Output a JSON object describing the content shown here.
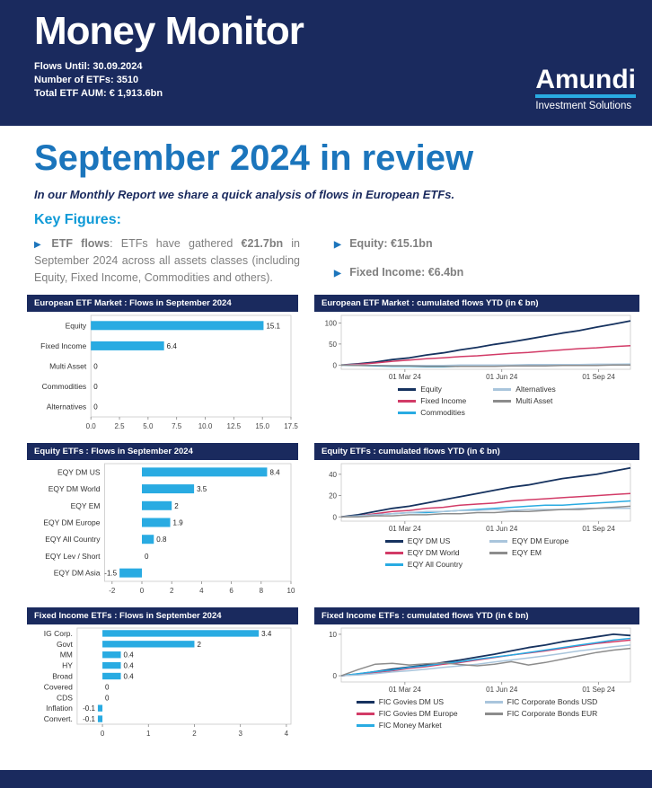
{
  "header": {
    "title": "Money Monitor",
    "meta": [
      {
        "label": "Flows Until:",
        "value": "30.09.2024"
      },
      {
        "label": "Number of ETFs:",
        "value": "3510"
      },
      {
        "label": "Total ETF AUM:",
        "value": "€ 1,913.6bn"
      }
    ],
    "logo": {
      "name": "Amundi",
      "subtitle": "Investment Solutions"
    }
  },
  "main": {
    "title": "September 2024 in review",
    "intro": "In our Monthly Report we share a quick analysis of flows in European ETFs.",
    "key_figures_heading": "Key Figures:",
    "bullet": "▶",
    "etf_flows_paragraph": [
      {
        "text": "ETF flows",
        "bold": true
      },
      {
        "text": ": ETFs have gathered ",
        "bold": false
      },
      {
        "text": "€21.7bn",
        "bold": true
      },
      {
        "text": " in September 2024 across all assets classes (including Equity, Fixed Income, Commodities and others).",
        "bold": false
      }
    ],
    "key_figures": [
      {
        "label": "Equity:",
        "value": "€15.1bn"
      },
      {
        "label": "Fixed Income:",
        "value": "€6.4bn"
      }
    ]
  },
  "colors": {
    "navy": "#1a2a5e",
    "title_blue": "#1b75bc",
    "cyan_accent": "#29abe2",
    "key_heading_blue": "#0f9ad7",
    "body_gray": "#7f7f7f",
    "line_navy": "#16325f",
    "line_crimson": "#d23b67",
    "line_cyan": "#29abe2",
    "line_lightblue": "#a9c5dc",
    "line_gray": "#8c8c8c"
  },
  "chart_data": [
    {
      "type": "bar",
      "title": "European ETF Market : Flows in September 2024",
      "orientation": "horizontal",
      "categories": [
        "Equity",
        "Fixed Income",
        "Multi Asset",
        "Commodities",
        "Alternatives"
      ],
      "values": [
        15.1,
        6.4,
        0,
        0,
        0
      ],
      "value_labels": [
        "15.1",
        "6.4",
        "0",
        "0",
        "0"
      ],
      "xlim": [
        0,
        17.5
      ],
      "xticks": [
        0,
        2.5,
        5,
        7.5,
        10,
        12.5,
        15,
        17.5
      ],
      "xtick_labels": [
        "0.0",
        "2.5",
        "5.0",
        "7.5",
        "10.0",
        "12.5",
        "15.0",
        "17.5"
      ],
      "bar_color": "#29abe2",
      "xlabel": "",
      "ylabel": ""
    },
    {
      "type": "line",
      "title": "European ETF Market : cumulated flows  YTD (in € bn)",
      "ylim": [
        -10,
        118
      ],
      "yticks": [
        0,
        50,
        100
      ],
      "ytick_labels": [
        "0",
        "50",
        "100"
      ],
      "xticks": [
        {
          "label": "01 Mar 24",
          "f": 0.22
        },
        {
          "label": "01 Jun 24",
          "f": 0.555
        },
        {
          "label": "01 Sep 24",
          "f": 0.89
        }
      ],
      "series": [
        {
          "name": "Equity",
          "color": "#16325f",
          "w": 1.8,
          "values": [
            0,
            3,
            7,
            13,
            17,
            24,
            29,
            36,
            42,
            49,
            55,
            62,
            69,
            76,
            82,
            90,
            97,
            105
          ]
        },
        {
          "name": "Fixed Income",
          "color": "#d23b67",
          "w": 1.5,
          "values": [
            0,
            2,
            5,
            9,
            12,
            15,
            17,
            20,
            22,
            25,
            28,
            30,
            33,
            36,
            39,
            41,
            44,
            46
          ]
        },
        {
          "name": "Commodities",
          "color": "#29abe2",
          "w": 1.5,
          "values": [
            0,
            -1,
            -2,
            -3,
            -3,
            -4,
            -4,
            -3,
            -3,
            -2,
            -2,
            -1,
            -1,
            0,
            0,
            1,
            1,
            2
          ]
        },
        {
          "name": "Alternatives",
          "color": "#a9c5dc",
          "w": 1.5,
          "values": [
            0,
            0,
            -1,
            -1,
            -1,
            -1,
            -1,
            0,
            0,
            0,
            0,
            1,
            1,
            1,
            1,
            2,
            2,
            2
          ]
        },
        {
          "name": "Multi Asset",
          "color": "#8c8c8c",
          "w": 1.5,
          "values": [
            0,
            -1,
            -1,
            -2,
            -2,
            -3,
            -3,
            -3,
            -3,
            -3,
            -2,
            -2,
            -2,
            -1,
            -1,
            -1,
            0,
            0
          ]
        }
      ],
      "legend_order": [
        0,
        3,
        1,
        4,
        2
      ],
      "legend_position": "bottom",
      "grid": false
    },
    {
      "type": "bar",
      "title": "Equity ETFs : Flows in September 2024",
      "orientation": "horizontal",
      "categories": [
        "EQY DM US",
        "EQY DM World",
        "EQY EM",
        "EQY DM Europe",
        "EQY All Country",
        "EQY Lev / Short",
        "EQY DM Asia"
      ],
      "values": [
        8.4,
        3.5,
        2,
        1.9,
        0.8,
        0,
        -1.5
      ],
      "value_labels": [
        "8.4",
        "3.5",
        "2",
        "1.9",
        "0.8",
        "0",
        "-1.5"
      ],
      "xlim": [
        -2.5,
        10
      ],
      "xticks": [
        -2,
        0,
        2,
        4,
        6,
        8,
        10
      ],
      "xtick_labels": [
        "-2",
        "0",
        "2",
        "4",
        "6",
        "8",
        "10"
      ],
      "bar_color": "#29abe2",
      "xlabel": "",
      "ylabel": ""
    },
    {
      "type": "line",
      "title": "Equity ETFs : cumulated flows YTD (in € bn)",
      "ylim": [
        -4,
        50
      ],
      "yticks": [
        0,
        20,
        40
      ],
      "ytick_labels": [
        "0",
        "20",
        "40"
      ],
      "xticks": [
        {
          "label": "01 Mar 24",
          "f": 0.22
        },
        {
          "label": "01 Jun 24",
          "f": 0.555
        },
        {
          "label": "01 Sep 24",
          "f": 0.89
        }
      ],
      "series": [
        {
          "name": "EQY DM US",
          "color": "#16325f",
          "w": 1.8,
          "values": [
            0,
            2,
            5,
            8,
            10,
            13,
            16,
            19,
            22,
            25,
            28,
            30,
            33,
            36,
            38,
            40,
            43,
            46
          ]
        },
        {
          "name": "EQY DM World",
          "color": "#d23b67",
          "w": 1.5,
          "values": [
            0,
            1,
            3,
            5,
            6,
            8,
            9,
            11,
            12,
            13,
            15,
            16,
            17,
            18,
            19,
            20,
            21,
            22
          ]
        },
        {
          "name": "EQY All Country",
          "color": "#29abe2",
          "w": 1.5,
          "values": [
            0,
            1,
            2,
            3,
            4,
            4,
            5,
            6,
            7,
            8,
            9,
            10,
            11,
            11,
            12,
            13,
            14,
            15
          ]
        },
        {
          "name": "EQY DM Europe",
          "color": "#a9c5dc",
          "w": 1.5,
          "values": [
            0,
            1,
            2,
            3,
            4,
            5,
            5,
            6,
            6,
            7,
            6,
            7,
            7,
            7,
            8,
            8,
            8,
            8
          ]
        },
        {
          "name": "EQY EM",
          "color": "#8c8c8c",
          "w": 1.5,
          "values": [
            0,
            0,
            1,
            1,
            2,
            2,
            3,
            3,
            4,
            4,
            5,
            5,
            6,
            7,
            7,
            8,
            9,
            10
          ]
        }
      ],
      "legend_order": [
        0,
        3,
        1,
        4,
        2
      ],
      "legend_position": "bottom",
      "grid": false
    },
    {
      "type": "bar",
      "title": "Fixed Income ETFs : Flows in September 2024",
      "orientation": "horizontal",
      "categories": [
        "IG Corp.",
        "Govt",
        "MM",
        "HY",
        "Broad",
        "Covered",
        "CDS",
        "Inflation",
        "Convert."
      ],
      "values": [
        3.4,
        2,
        0.4,
        0.4,
        0.4,
        0,
        0,
        -0.1,
        -0.1
      ],
      "value_labels": [
        "3.4",
        "2",
        "0.4",
        "0.4",
        "0.4",
        "0",
        "0",
        "-0.1",
        "-0.1"
      ],
      "xlim": [
        -0.55,
        4.1
      ],
      "xticks": [
        0,
        1,
        2,
        3,
        4
      ],
      "xtick_labels": [
        "0",
        "1",
        "2",
        "3",
        "4"
      ],
      "bar_color": "#29abe2",
      "xlabel": "",
      "ylabel": ""
    },
    {
      "type": "line",
      "title": "Fixed Income ETFs : cumulated flows YTD (in € bn)",
      "ylim": [
        -1.5,
        11.5
      ],
      "yticks": [
        0,
        10
      ],
      "ytick_labels": [
        "0",
        "10"
      ],
      "xticks": [
        {
          "label": "01 Mar 24",
          "f": 0.22
        },
        {
          "label": "01 Jun 24",
          "f": 0.555
        },
        {
          "label": "01 Sep 24",
          "f": 0.89
        }
      ],
      "series": [
        {
          "name": "FIC Govies DM US",
          "color": "#16325f",
          "w": 1.8,
          "values": [
            0,
            0.4,
            1,
            1.6,
            2.1,
            2.6,
            3.2,
            3.8,
            4.5,
            5.2,
            6,
            6.8,
            7.4,
            8.2,
            8.8,
            9.4,
            10,
            9.7
          ]
        },
        {
          "name": "FIC Govies DM Europe",
          "color": "#d23b67",
          "w": 1.5,
          "values": [
            0,
            0.3,
            0.8,
            1.2,
            1.8,
            2.2,
            2.8,
            3.2,
            3.8,
            4.4,
            5,
            5.5,
            6,
            6.6,
            7.2,
            7.8,
            8.2,
            8.6
          ]
        },
        {
          "name": "FIC Money Market",
          "color": "#29abe2",
          "w": 1.5,
          "values": [
            0,
            0.5,
            1,
            1.4,
            2,
            2.4,
            3,
            3.4,
            4,
            4.5,
            5,
            5.6,
            6.2,
            6.8,
            7.4,
            8,
            8.6,
            9
          ]
        },
        {
          "name": "FIC Corporate Bonds USD",
          "color": "#a9c5dc",
          "w": 1.5,
          "values": [
            0,
            0.2,
            0.5,
            0.9,
            1.2,
            1.6,
            2,
            2.4,
            2.8,
            3.3,
            3.8,
            4.3,
            4.8,
            5.4,
            6,
            6.5,
            7,
            7.4
          ]
        },
        {
          "name": "FIC Corporate Bonds EUR",
          "color": "#8c8c8c",
          "w": 1.5,
          "values": [
            0,
            1.5,
            2.8,
            3,
            2.6,
            2.9,
            3.1,
            2.7,
            2.4,
            2.8,
            3.4,
            2.6,
            3.2,
            4,
            4.8,
            5.6,
            6.2,
            6.6
          ]
        }
      ],
      "legend_order": [
        0,
        3,
        1,
        4,
        2
      ],
      "legend_position": "bottom",
      "grid": false
    }
  ]
}
